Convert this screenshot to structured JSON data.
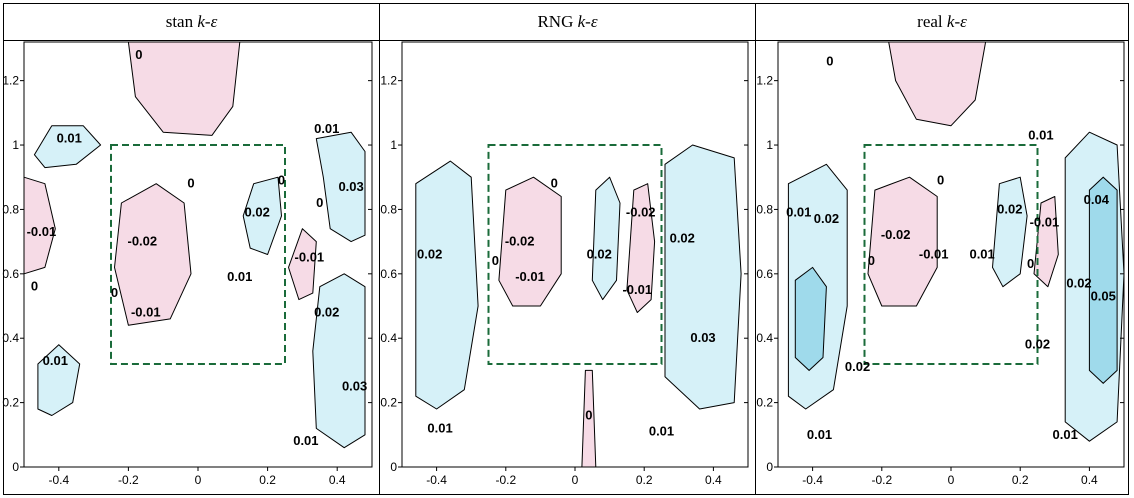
{
  "chart_data": [
    {
      "type": "contour",
      "title": "stan k-ε",
      "title_parts": [
        "stan ",
        "k-ε"
      ],
      "xlim": [
        -0.5,
        0.5
      ],
      "ylim": [
        0,
        1.32
      ],
      "xticks": [
        "-0.4",
        "-0.2",
        "0",
        "0.2",
        "0.4"
      ],
      "xtick_values": [
        -0.4,
        -0.2,
        0,
        0.2,
        0.4
      ],
      "yticks": [
        "0",
        "0.2",
        "0.4",
        "0.6",
        "0.8",
        "1",
        "1.2"
      ],
      "ytick_values": [
        0,
        0.2,
        0.4,
        0.6,
        0.8,
        1,
        1.2
      ],
      "box": {
        "x0": -0.25,
        "x1": 0.25,
        "y0": 0.32,
        "y1": 1.0
      },
      "contour_labels": [
        {
          "text": "0",
          "x": -0.17,
          "y": 1.28
        },
        {
          "text": "0.01",
          "x": -0.37,
          "y": 1.02
        },
        {
          "text": "-0.01",
          "x": -0.45,
          "y": 0.73
        },
        {
          "text": "0",
          "x": -0.47,
          "y": 0.56
        },
        {
          "text": "-0.02",
          "x": -0.16,
          "y": 0.7
        },
        {
          "text": "0",
          "x": -0.24,
          "y": 0.54
        },
        {
          "text": "-0.01",
          "x": -0.15,
          "y": 0.48
        },
        {
          "text": "0",
          "x": -0.02,
          "y": 0.88
        },
        {
          "text": "0.02",
          "x": 0.17,
          "y": 0.79
        },
        {
          "text": "0",
          "x": 0.24,
          "y": 0.89
        },
        {
          "text": "0.01",
          "x": 0.12,
          "y": 0.59
        },
        {
          "text": "-0.01",
          "x": 0.32,
          "y": 0.65
        },
        {
          "text": "0",
          "x": 0.35,
          "y": 0.82
        },
        {
          "text": "0.03",
          "x": 0.44,
          "y": 0.87
        },
        {
          "text": "0.01",
          "x": 0.37,
          "y": 1.05
        },
        {
          "text": "0.02",
          "x": 0.37,
          "y": 0.48
        },
        {
          "text": "0.03",
          "x": 0.45,
          "y": 0.25
        },
        {
          "text": "0.01",
          "x": -0.41,
          "y": 0.33
        },
        {
          "text": "0.01",
          "x": 0.31,
          "y": 0.08
        }
      ]
    },
    {
      "type": "contour",
      "title": "RNG k-ε",
      "title_parts": [
        "RNG ",
        "k-ε"
      ],
      "xlim": [
        -0.5,
        0.5
      ],
      "ylim": [
        0,
        1.32
      ],
      "xticks": [
        "-0.4",
        "-0.2",
        "0",
        "0.2",
        "0.4"
      ],
      "xtick_values": [
        -0.4,
        -0.2,
        0,
        0.2,
        0.4
      ],
      "yticks": [
        "0",
        "0.2",
        "0.4",
        "0.6",
        "0.8",
        "1",
        "1.2"
      ],
      "ytick_values": [
        0,
        0.2,
        0.4,
        0.6,
        0.8,
        1,
        1.2
      ],
      "box": {
        "x0": -0.25,
        "x1": 0.25,
        "y0": 0.32,
        "y1": 1.0
      },
      "contour_labels": [
        {
          "text": "0",
          "x": -0.06,
          "y": 0.88
        },
        {
          "text": "-0.02",
          "x": -0.16,
          "y": 0.7
        },
        {
          "text": "0",
          "x": -0.23,
          "y": 0.64
        },
        {
          "text": "-0.01",
          "x": -0.13,
          "y": 0.59
        },
        {
          "text": "0.02",
          "x": -0.42,
          "y": 0.66
        },
        {
          "text": "0.02",
          "x": 0.07,
          "y": 0.66
        },
        {
          "text": "-0.02",
          "x": 0.19,
          "y": 0.79
        },
        {
          "text": "-0.01",
          "x": 0.18,
          "y": 0.55
        },
        {
          "text": "0.02",
          "x": 0.31,
          "y": 0.71
        },
        {
          "text": "0.03",
          "x": 0.37,
          "y": 0.4
        },
        {
          "text": "0.01",
          "x": -0.39,
          "y": 0.12
        },
        {
          "text": "0",
          "x": 0.04,
          "y": 0.16
        },
        {
          "text": "0.01",
          "x": 0.25,
          "y": 0.11
        }
      ]
    },
    {
      "type": "contour",
      "title": "real k-ε",
      "title_parts": [
        "real ",
        "k-ε"
      ],
      "xlim": [
        -0.5,
        0.5
      ],
      "ylim": [
        0,
        1.32
      ],
      "xticks": [
        "-0.4",
        "-0.2",
        "0",
        "0.2",
        "0.4"
      ],
      "xtick_values": [
        -0.4,
        -0.2,
        0,
        0.2,
        0.4
      ],
      "yticks": [
        "0",
        "0.2",
        "0.4",
        "0.6",
        "0.8",
        "1",
        "1.2"
      ],
      "ytick_values": [
        0,
        0.2,
        0.4,
        0.6,
        0.8,
        1,
        1.2
      ],
      "box": {
        "x0": -0.25,
        "x1": 0.25,
        "y0": 0.32,
        "y1": 1.0
      },
      "contour_labels": [
        {
          "text": "0",
          "x": -0.35,
          "y": 1.26
        },
        {
          "text": "0.01",
          "x": 0.26,
          "y": 1.03
        },
        {
          "text": "0",
          "x": -0.03,
          "y": 0.89
        },
        {
          "text": "0.01",
          "x": -0.44,
          "y": 0.79
        },
        {
          "text": "0.02",
          "x": -0.36,
          "y": 0.77
        },
        {
          "text": "-0.02",
          "x": -0.16,
          "y": 0.72
        },
        {
          "text": "-0.01",
          "x": -0.05,
          "y": 0.66
        },
        {
          "text": "0",
          "x": -0.23,
          "y": 0.64
        },
        {
          "text": "0.01",
          "x": 0.09,
          "y": 0.66
        },
        {
          "text": "0.02",
          "x": 0.17,
          "y": 0.8
        },
        {
          "text": "-0.01",
          "x": 0.27,
          "y": 0.76
        },
        {
          "text": "0",
          "x": 0.23,
          "y": 0.63
        },
        {
          "text": "0.04",
          "x": 0.42,
          "y": 0.83
        },
        {
          "text": "0.05",
          "x": 0.44,
          "y": 0.53
        },
        {
          "text": "0.02",
          "x": 0.25,
          "y": 0.38
        },
        {
          "text": "0.02",
          "x": 0.37,
          "y": 0.57
        },
        {
          "text": "0.02",
          "x": -0.27,
          "y": 0.31
        },
        {
          "text": "0.01",
          "x": -0.38,
          "y": 0.1
        },
        {
          "text": "0.01",
          "x": 0.33,
          "y": 0.1
        }
      ]
    }
  ],
  "colors": {
    "positive_fill": "#d6f1f8",
    "positive_fill_strong": "#9fdaeb",
    "negative_fill": "#f6dbe6",
    "box_stroke": "#1a6b3a",
    "contour_stroke": "#000000"
  }
}
